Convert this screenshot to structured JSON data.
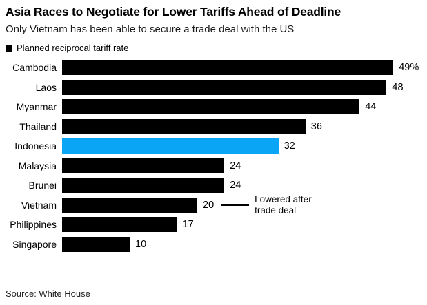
{
  "header": {
    "title": "Asia Races to Negotiate for Lower Tariffs Ahead of Deadline",
    "subtitle": "Only Vietnam has been able to secure a trade deal with the US"
  },
  "legend": {
    "label": "Planned reciprocal tariff rate",
    "swatch_color": "#000000"
  },
  "chart_data": {
    "type": "bar",
    "orientation": "horizontal",
    "title": "Asia Races to Negotiate for Lower Tariffs Ahead of Deadline",
    "subtitle": "Only Vietnam has been able to secure a trade deal with the US",
    "series_name": "Planned reciprocal tariff rate",
    "categories": [
      "Cambodia",
      "Laos",
      "Myanmar",
      "Thailand",
      "Indonesia",
      "Malaysia",
      "Brunei",
      "Vietnam",
      "Philippines",
      "Singapore"
    ],
    "values": [
      49,
      48,
      44,
      36,
      32,
      24,
      24,
      20,
      17,
      10
    ],
    "value_labels": [
      "49%",
      "48",
      "44",
      "36",
      "32",
      "24",
      "24",
      "20",
      "17",
      "10"
    ],
    "xlim": [
      0,
      49
    ],
    "grid": false,
    "legend_position": "top-left",
    "highlight_index": 4,
    "annotation": {
      "target_category": "Vietnam",
      "target_index": 7,
      "line1": "Lowered after",
      "line2": "trade deal"
    }
  },
  "colors": {
    "bar": "#000000",
    "highlight": "#0aa6f5",
    "text": "#000000"
  },
  "source": "Source: White House"
}
